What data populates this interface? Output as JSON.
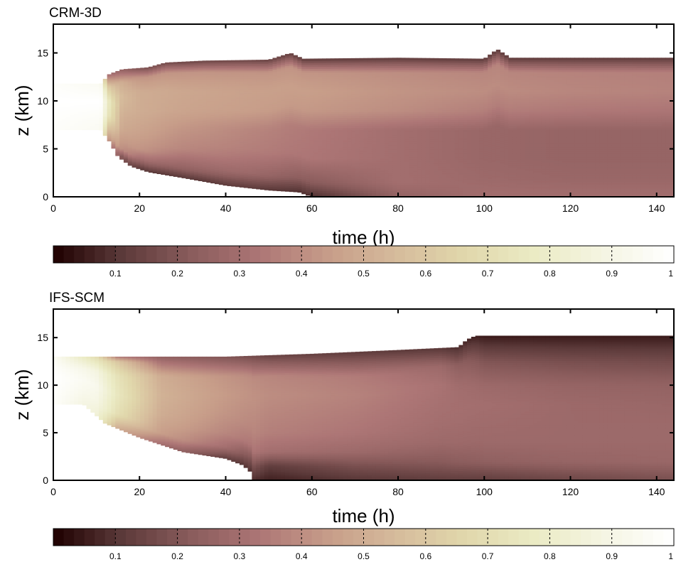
{
  "chart_data": [
    {
      "type": "heatmap",
      "title": "CRM-3D",
      "xlabel": "time (h)",
      "ylabel": "z (km)",
      "xlim": [
        0,
        144
      ],
      "ylim": [
        0,
        18
      ],
      "x_ticks": [
        0,
        20,
        40,
        60,
        80,
        100,
        120,
        140
      ],
      "y_ticks": [
        0,
        5,
        10,
        15
      ],
      "x_tick_labels": [
        "0",
        "20",
        "40",
        "60",
        "80",
        "100",
        "120",
        "140"
      ],
      "y_tick_labels": [
        "0",
        "5",
        "10",
        "15"
      ],
      "field_range": [
        0,
        1
      ],
      "cloud_top_km": [
        [
          0,
          11.8
        ],
        [
          11,
          11.8
        ],
        [
          13,
          12.8
        ],
        [
          16,
          13.3
        ],
        [
          22,
          13.5
        ],
        [
          26,
          14.0
        ],
        [
          35,
          14.2
        ],
        [
          50,
          14.3
        ],
        [
          55,
          15.0
        ],
        [
          58,
          14.4
        ],
        [
          80,
          14.5
        ],
        [
          100,
          14.4
        ],
        [
          103,
          15.4
        ],
        [
          106,
          14.5
        ],
        [
          144,
          14.5
        ]
      ],
      "cloud_base_km": [
        [
          0,
          7.0
        ],
        [
          11,
          7.0
        ],
        [
          13,
          5.8
        ],
        [
          15,
          4.2
        ],
        [
          18,
          3.2
        ],
        [
          22,
          2.6
        ],
        [
          30,
          2.0
        ],
        [
          40,
          1.2
        ],
        [
          50,
          0.7
        ],
        [
          57,
          0.5
        ],
        [
          60,
          0
        ],
        [
          144,
          0
        ]
      ],
      "profiles": [
        {
          "t": 0,
          "z": [
            7,
            8.5,
            10,
            11,
            11.8
          ],
          "v": [
            0.98,
            0.99,
            1.0,
            0.99,
            0.98
          ]
        },
        {
          "t": 11,
          "z": [
            7,
            8.5,
            10,
            11,
            11.8
          ],
          "v": [
            0.95,
            0.97,
            1.0,
            0.97,
            0.95
          ]
        },
        {
          "t": 13,
          "z": [
            5.8,
            7,
            8.5,
            10,
            11.5,
            12.8
          ],
          "v": [
            0.4,
            0.55,
            0.72,
            0.75,
            0.6,
            0.3
          ]
        },
        {
          "t": 16,
          "z": [
            4.2,
            5,
            7,
            9,
            10.5,
            12,
            13.3
          ],
          "v": [
            0.2,
            0.4,
            0.48,
            0.52,
            0.55,
            0.5,
            0.25
          ]
        },
        {
          "t": 20,
          "z": [
            2.9,
            4,
            5,
            7,
            9,
            11,
            12.5,
            13.4
          ],
          "v": [
            0.1,
            0.3,
            0.42,
            0.47,
            0.5,
            0.5,
            0.42,
            0.2
          ]
        },
        {
          "t": 30,
          "z": [
            2.0,
            3,
            5,
            7,
            9,
            11,
            13,
            14.1
          ],
          "v": [
            0.1,
            0.25,
            0.38,
            0.42,
            0.47,
            0.48,
            0.42,
            0.15
          ]
        },
        {
          "t": 45,
          "z": [
            1.0,
            2.5,
            5,
            7,
            9,
            11,
            13,
            14.3
          ],
          "v": [
            0.12,
            0.28,
            0.36,
            0.38,
            0.45,
            0.46,
            0.42,
            0.15
          ]
        },
        {
          "t": 60,
          "z": [
            0,
            1.5,
            4,
            7,
            9,
            11,
            13,
            14.4
          ],
          "v": [
            0.08,
            0.22,
            0.33,
            0.34,
            0.43,
            0.45,
            0.42,
            0.12
          ]
        },
        {
          "t": 80,
          "z": [
            0,
            1.5,
            4,
            7,
            9,
            11,
            13,
            14.5
          ],
          "v": [
            0.25,
            0.3,
            0.3,
            0.3,
            0.4,
            0.42,
            0.4,
            0.12
          ]
        },
        {
          "t": 100,
          "z": [
            0,
            2,
            4,
            7,
            9,
            11,
            13,
            14.4
          ],
          "v": [
            0.3,
            0.28,
            0.27,
            0.27,
            0.36,
            0.4,
            0.38,
            0.12
          ]
        },
        {
          "t": 120,
          "z": [
            0,
            2,
            4,
            7,
            9,
            11,
            13,
            14.5
          ],
          "v": [
            0.3,
            0.27,
            0.26,
            0.26,
            0.34,
            0.38,
            0.37,
            0.12
          ]
        },
        {
          "t": 144,
          "z": [
            0,
            2,
            4,
            7,
            9,
            11,
            13,
            14.5
          ],
          "v": [
            0.3,
            0.27,
            0.26,
            0.26,
            0.33,
            0.37,
            0.36,
            0.12
          ]
        }
      ]
    },
    {
      "type": "heatmap",
      "title": "IFS-SCM",
      "xlabel": "time (h)",
      "ylabel": "z (km)",
      "xlim": [
        0,
        144
      ],
      "ylim": [
        0,
        18
      ],
      "x_ticks": [
        0,
        20,
        40,
        60,
        80,
        100,
        120,
        140
      ],
      "y_ticks": [
        0,
        5,
        10,
        15
      ],
      "x_tick_labels": [
        "0",
        "20",
        "40",
        "60",
        "80",
        "100",
        "120",
        "140"
      ],
      "y_tick_labels": [
        "0",
        "5",
        "10",
        "15"
      ],
      "field_range": [
        0,
        1
      ],
      "cloud_top_km": [
        [
          0,
          13.0
        ],
        [
          40,
          13.0
        ],
        [
          60,
          13.3
        ],
        [
          80,
          13.7
        ],
        [
          94,
          14.0
        ],
        [
          96,
          14.8
        ],
        [
          98,
          15.2
        ],
        [
          144,
          15.2
        ]
      ],
      "cloud_base_km": [
        [
          0,
          8.0
        ],
        [
          7,
          8.0
        ],
        [
          9,
          7.2
        ],
        [
          12,
          6.0
        ],
        [
          20,
          4.5
        ],
        [
          30,
          3.0
        ],
        [
          40,
          2.3
        ],
        [
          44,
          1.6
        ],
        [
          46,
          0.8
        ],
        [
          46.5,
          0
        ],
        [
          144,
          0
        ]
      ],
      "profiles": [
        {
          "t": 0,
          "z": [
            8,
            9.5,
            11,
            12,
            13
          ],
          "v": [
            0.98,
            0.99,
            1.0,
            0.98,
            0.96
          ]
        },
        {
          "t": 10,
          "z": [
            7,
            8.5,
            10,
            11.5,
            13
          ],
          "v": [
            0.85,
            0.9,
            0.93,
            0.88,
            0.7
          ]
        },
        {
          "t": 15,
          "z": [
            5.5,
            7,
            9,
            11,
            12.5,
            13
          ],
          "v": [
            0.5,
            0.7,
            0.75,
            0.72,
            0.6,
            0.35
          ]
        },
        {
          "t": 25,
          "z": [
            3.8,
            5,
            7,
            9,
            11,
            13
          ],
          "v": [
            0.3,
            0.45,
            0.5,
            0.52,
            0.5,
            0.25
          ]
        },
        {
          "t": 40,
          "z": [
            2.3,
            3.5,
            5,
            7,
            9,
            11,
            13
          ],
          "v": [
            0.12,
            0.3,
            0.38,
            0.42,
            0.44,
            0.42,
            0.2
          ]
        },
        {
          "t": 50,
          "z": [
            0,
            1.5,
            3,
            5,
            7,
            9,
            11,
            13.1
          ],
          "v": [
            0.06,
            0.12,
            0.3,
            0.36,
            0.38,
            0.4,
            0.38,
            0.15
          ]
        },
        {
          "t": 70,
          "z": [
            0,
            1.5,
            3,
            5,
            7,
            9,
            11,
            13.5
          ],
          "v": [
            0.1,
            0.18,
            0.28,
            0.33,
            0.35,
            0.37,
            0.35,
            0.12
          ]
        },
        {
          "t": 90,
          "z": [
            0,
            2,
            4,
            6,
            8,
            10,
            12,
            14
          ],
          "v": [
            0.12,
            0.22,
            0.28,
            0.3,
            0.31,
            0.32,
            0.28,
            0.1
          ]
        },
        {
          "t": 100,
          "z": [
            0,
            2,
            4,
            6,
            8,
            10,
            12.5,
            15.2
          ],
          "v": [
            0.12,
            0.24,
            0.28,
            0.29,
            0.3,
            0.28,
            0.2,
            0.05
          ]
        },
        {
          "t": 120,
          "z": [
            0,
            2,
            4,
            6,
            8,
            10,
            12.5,
            15.2
          ],
          "v": [
            0.15,
            0.26,
            0.28,
            0.28,
            0.28,
            0.26,
            0.18,
            0.05
          ]
        },
        {
          "t": 144,
          "z": [
            0,
            2,
            4,
            6,
            8,
            10,
            12.5,
            15.2
          ],
          "v": [
            0.18,
            0.27,
            0.28,
            0.28,
            0.27,
            0.25,
            0.17,
            0.05
          ]
        }
      ]
    }
  ],
  "colorbar": {
    "range": [
      0,
      1
    ],
    "ticks": [
      0.1,
      0.2,
      0.3,
      0.4,
      0.5,
      0.6,
      0.7,
      0.8,
      0.9,
      1
    ],
    "tick_labels": [
      "0.1",
      "0.2",
      "0.3",
      "0.4",
      "0.5",
      "0.6",
      "0.7",
      "0.8",
      "0.9",
      "1"
    ],
    "colormap": "pink",
    "colors": [
      "#1e0000",
      "#5c3a3a",
      "#8a5c5c",
      "#ad7676",
      "#c79d89",
      "#d6bc9c",
      "#e1d8ac",
      "#ebebc5",
      "#f5f5e3",
      "#ffffff"
    ]
  }
}
